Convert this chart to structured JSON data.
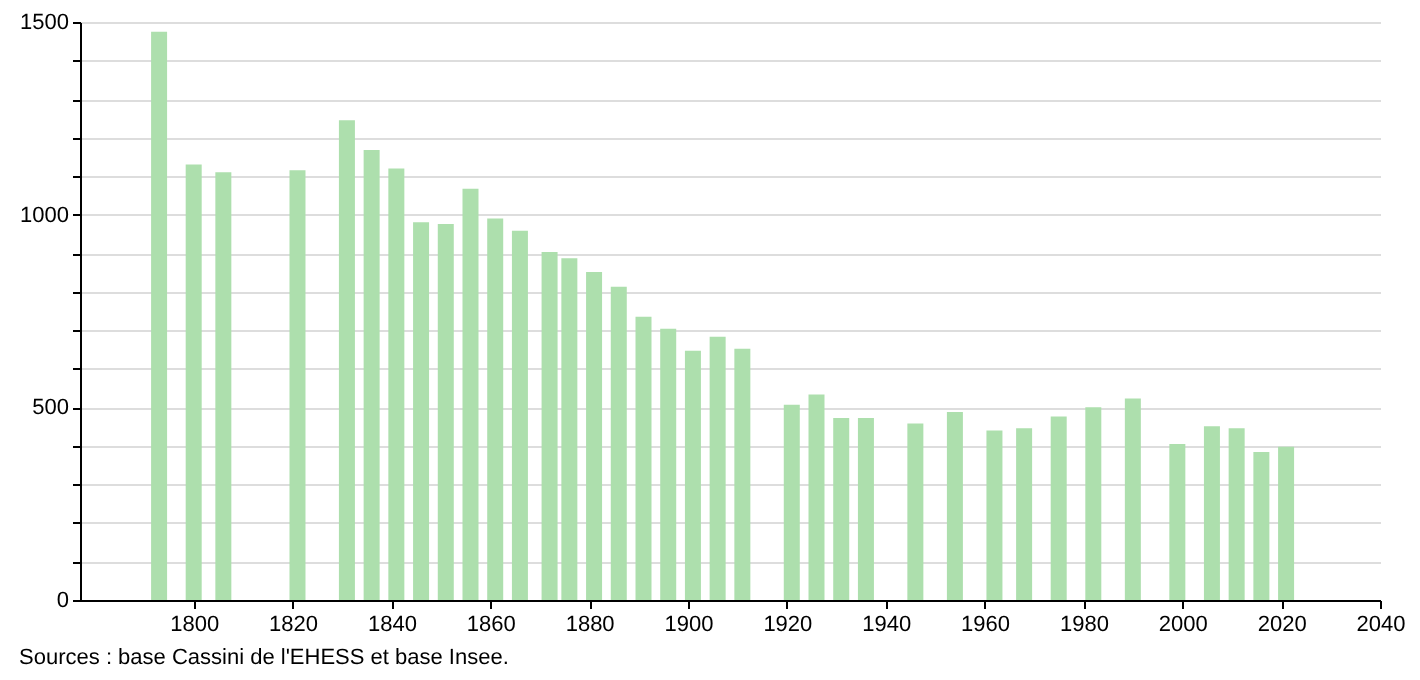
{
  "chart_data": {
    "type": "bar",
    "x": [
      1793,
      1800,
      1806,
      1821,
      1831,
      1836,
      1841,
      1846,
      1851,
      1856,
      1861,
      1866,
      1872,
      1876,
      1881,
      1886,
      1891,
      1896,
      1901,
      1906,
      1911,
      1921,
      1926,
      1931,
      1936,
      1946,
      1954,
      1962,
      1968,
      1975,
      1982,
      1990,
      1999,
      2006,
      2011,
      2016,
      2021
    ],
    "values": [
      1475,
      1130,
      1110,
      1115,
      1245,
      1168,
      1120,
      980,
      976,
      1067,
      990,
      958,
      903,
      887,
      851,
      813,
      735,
      704,
      647,
      683,
      652,
      507,
      533,
      472,
      472,
      458,
      488,
      440,
      446,
      476,
      500,
      523,
      405,
      451,
      446,
      384,
      398
    ],
    "color": "#addfad",
    "xlim": [
      1777,
      2040
    ],
    "xticks": [
      1800,
      1820,
      1840,
      1860,
      1880,
      1900,
      1920,
      1940,
      1960,
      1980,
      2000,
      2020,
      2040
    ],
    "ylim": [
      0,
      1500
    ],
    "yticks": [
      0,
      {
        "value": 100,
        "label": null
      },
      {
        "value": 200,
        "label": null
      },
      {
        "value": 300,
        "label": null
      },
      {
        "value": 400,
        "label": null
      },
      500,
      {
        "value": 600,
        "label": null
      },
      {
        "value": 700,
        "label": null
      },
      {
        "value": 800,
        "label": null
      },
      {
        "value": 900,
        "label": null
      },
      1000,
      {
        "value": 1100,
        "label": null
      },
      {
        "value": 1200,
        "label": null
      },
      {
        "value": 1300,
        "label": null
      },
      {
        "value": 1400,
        "label": null
      },
      1500
    ],
    "grid": "y",
    "annotations": [
      "Sources : base Cassini de l'EHESS et base Insee."
    ]
  }
}
